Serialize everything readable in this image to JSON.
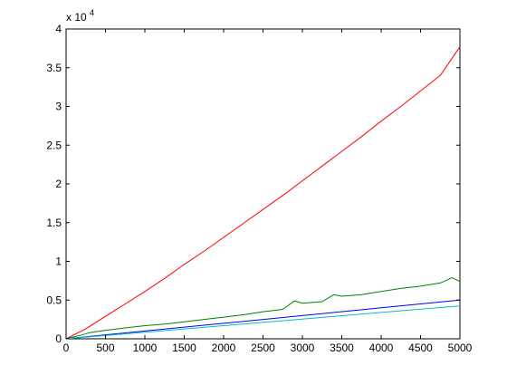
{
  "chart_data": {
    "type": "line",
    "title": "",
    "xlabel": "",
    "ylabel": "",
    "xlim": [
      0,
      5000
    ],
    "ylim": [
      0,
      40000
    ],
    "y_exponent_label": "x 10",
    "y_exponent_power": "4",
    "x_ticks": [
      0,
      500,
      1000,
      1500,
      2000,
      2500,
      3000,
      3500,
      4000,
      4500,
      5000
    ],
    "x_tick_labels": [
      "0",
      "500",
      "1000",
      "1500",
      "2000",
      "2500",
      "3000",
      "3500",
      "4000",
      "4500",
      "5000"
    ],
    "y_ticks": [
      0,
      5000,
      10000,
      15000,
      20000,
      25000,
      30000,
      35000,
      40000
    ],
    "y_tick_labels": [
      "0",
      "0.5",
      "1",
      "1.5",
      "2",
      "2.5",
      "3",
      "3.5",
      "4"
    ],
    "grid": false,
    "legend": "none",
    "series": [
      {
        "color": "#ff0000",
        "x": [
          0,
          250,
          500,
          750,
          1000,
          1250,
          1500,
          1750,
          2000,
          2250,
          2500,
          2750,
          3000,
          3250,
          3500,
          3750,
          4000,
          4250,
          4500,
          4750,
          5000
        ],
        "y": [
          0,
          1300,
          2900,
          4500,
          6100,
          7800,
          9600,
          11300,
          13100,
          14900,
          16700,
          18500,
          20400,
          22300,
          24200,
          26100,
          28100,
          30000,
          32000,
          34000,
          37700
        ]
      },
      {
        "color": "#008000",
        "x": [
          0,
          100,
          200,
          300,
          400,
          500,
          750,
          1000,
          1250,
          1500,
          1750,
          2000,
          2250,
          2500,
          2750,
          2900,
          3000,
          3250,
          3400,
          3500,
          3750,
          4000,
          4250,
          4500,
          4750,
          4900,
          5000
        ],
        "y": [
          0,
          250,
          500,
          800,
          950,
          1100,
          1400,
          1700,
          1900,
          2200,
          2500,
          2800,
          3100,
          3500,
          3800,
          4900,
          4600,
          4800,
          5700,
          5500,
          5700,
          6100,
          6500,
          6800,
          7200,
          7900,
          7400
        ]
      },
      {
        "color": "#0000ff",
        "x": [
          0,
          1000,
          2000,
          3000,
          4000,
          5000
        ],
        "y": [
          0,
          1000,
          2000,
          3000,
          4000,
          5000
        ]
      },
      {
        "color": "#00bfbf",
        "x": [
          0,
          1000,
          2000,
          3000,
          4000,
          5000
        ],
        "y": [
          0,
          850,
          1700,
          2550,
          3400,
          4250
        ]
      }
    ]
  }
}
